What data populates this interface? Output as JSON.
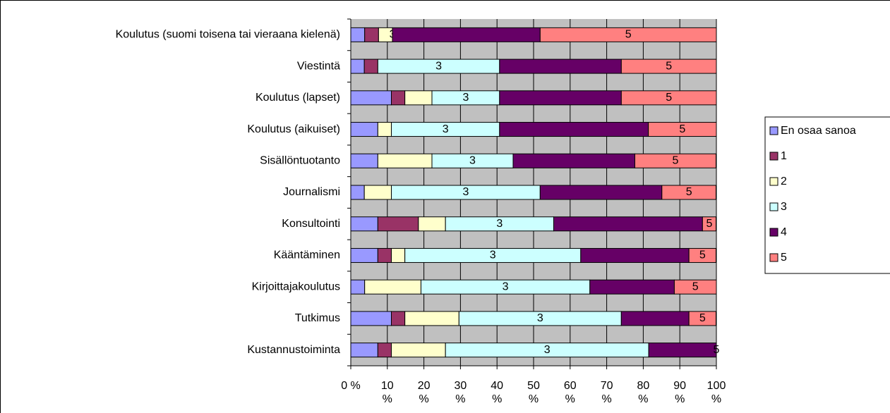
{
  "chart_data": {
    "type": "stacked_bar_100",
    "categories": [
      "Koulutus (suomi toisena tai vieraana kielenä)",
      "Viestintä",
      "Koulutus (lapset)",
      "Koulutus (aikuiset)",
      "Sisällöntuotanto",
      "Journalismi",
      "Konsultointi",
      "Kääntäminen",
      "Kirjoittajakoulutus",
      "Tutkimus",
      "Kustannustoiminta"
    ],
    "series": [
      {
        "name": "En osaa sanoa",
        "color": "#9999ff",
        "values": [
          3.8,
          3.7,
          11.1,
          7.4,
          7.4,
          3.7,
          7.4,
          7.4,
          3.8,
          11.1,
          7.4
        ]
      },
      {
        "name": "1",
        "color": "#993366",
        "values": [
          3.8,
          3.7,
          3.7,
          0,
          0,
          0,
          11.1,
          3.7,
          0,
          3.7,
          3.7
        ]
      },
      {
        "name": "2",
        "color": "#ffffcc",
        "values": [
          3.8,
          0,
          7.4,
          3.7,
          14.8,
          7.4,
          7.4,
          3.7,
          15.4,
          14.8,
          14.8
        ]
      },
      {
        "name": "3",
        "color": "#ccffff",
        "values": [
          0,
          33.3,
          18.5,
          29.6,
          22.2,
          40.7,
          29.6,
          48.1,
          46.2,
          44.4,
          55.6
        ],
        "name_labels": true
      },
      {
        "name": "4",
        "color": "#660066",
        "values": [
          40.4,
          33.3,
          33.3,
          40.7,
          33.3,
          33.3,
          40.7,
          29.6,
          23.1,
          18.5,
          18.5
        ]
      },
      {
        "name": "5",
        "color": "#ff8080",
        "values": [
          48.2,
          26.0,
          26.0,
          18.6,
          22.2,
          14.8,
          3.7,
          7.4,
          11.5,
          7.4,
          0
        ],
        "name_labels": true
      }
    ],
    "xlim": [
      0,
      100
    ],
    "xticks": [
      {
        "value": 0,
        "label": "0 %"
      },
      {
        "value": 10,
        "label": "10 %"
      },
      {
        "value": 20,
        "label": "20 %"
      },
      {
        "value": 30,
        "label": "30 %"
      },
      {
        "value": 40,
        "label": "40 %"
      },
      {
        "value": 50,
        "label": "50 %"
      },
      {
        "value": 60,
        "label": "60 %"
      },
      {
        "value": 70,
        "label": "70 %"
      },
      {
        "value": 80,
        "label": "80 %"
      },
      {
        "value": 90,
        "label": "90 %"
      },
      {
        "value": 100,
        "label": "100 %"
      }
    ],
    "grid": true,
    "plot_background": "#c0c0c0",
    "legend": "right"
  }
}
